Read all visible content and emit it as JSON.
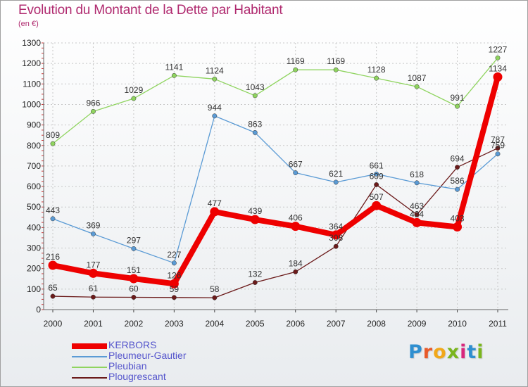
{
  "title": "Evolution du Montant de la Dette par Habitant",
  "unit": "(en €)",
  "logo": {
    "letters": [
      "P",
      "r",
      "o",
      "x",
      "i",
      "t",
      "i"
    ],
    "colors": [
      "#2f8fd0",
      "#e85a2a",
      "#f1a81a",
      "#7ab51d",
      "#d8277c",
      "#2f8fd0",
      "#7ab51d"
    ]
  },
  "chart_data": {
    "type": "line",
    "x": [
      "2000",
      "2001",
      "2002",
      "2003",
      "2004",
      "2005",
      "2006",
      "2007",
      "2008",
      "2009",
      "2010",
      "2011"
    ],
    "ylim": [
      0,
      1300
    ],
    "yticks": [
      "0",
      "100",
      "200",
      "300",
      "400",
      "500",
      "600",
      "700",
      "800",
      "900",
      "1000",
      "1100",
      "1200",
      "1300"
    ],
    "grid": true,
    "legend_position": "bottom-left",
    "series": [
      {
        "name": "Plougrescant",
        "color": "#6b1a1a",
        "values": [
          65,
          61,
          60,
          59,
          58,
          132,
          184,
          308,
          609,
          463,
          694,
          787
        ],
        "labels": [
          "65",
          "61",
          "60",
          "59",
          "58",
          "132",
          "184",
          "308",
          "609",
          "463",
          "694",
          "787"
        ]
      },
      {
        "name": "Pleubian",
        "color": "#8fd45f",
        "values": [
          809,
          966,
          1029,
          1141,
          1124,
          1043,
          1169,
          1169,
          1128,
          1087,
          991,
          1227
        ],
        "labels": [
          "809",
          "966",
          "1029",
          "1141",
          "1124",
          "1043",
          "1169",
          "1169",
          "1128",
          "1087",
          "991",
          "1227"
        ]
      },
      {
        "name": "Pleumeur-Gautier",
        "color": "#5b9bd5",
        "values": [
          443,
          369,
          297,
          227,
          944,
          863,
          667,
          621,
          661,
          618,
          586,
          759
        ],
        "labels": [
          "443",
          "369",
          "297",
          "227",
          "944",
          "863",
          "667",
          "621",
          "661",
          "618",
          "586",
          "759"
        ]
      },
      {
        "name": "KERBORS",
        "color": "#ee0000",
        "values": [
          216,
          177,
          151,
          126,
          477,
          439,
          406,
          364,
          507,
          424,
          403,
          1134
        ],
        "labels": [
          "216",
          "177",
          "151",
          "126",
          "477",
          "439",
          "406",
          "364",
          "507",
          "424",
          "403",
          "1134"
        ]
      }
    ],
    "legend_order": [
      "KERBORS",
      "Pleumeur-Gautier",
      "Pleubian",
      "Plougrescant"
    ]
  }
}
